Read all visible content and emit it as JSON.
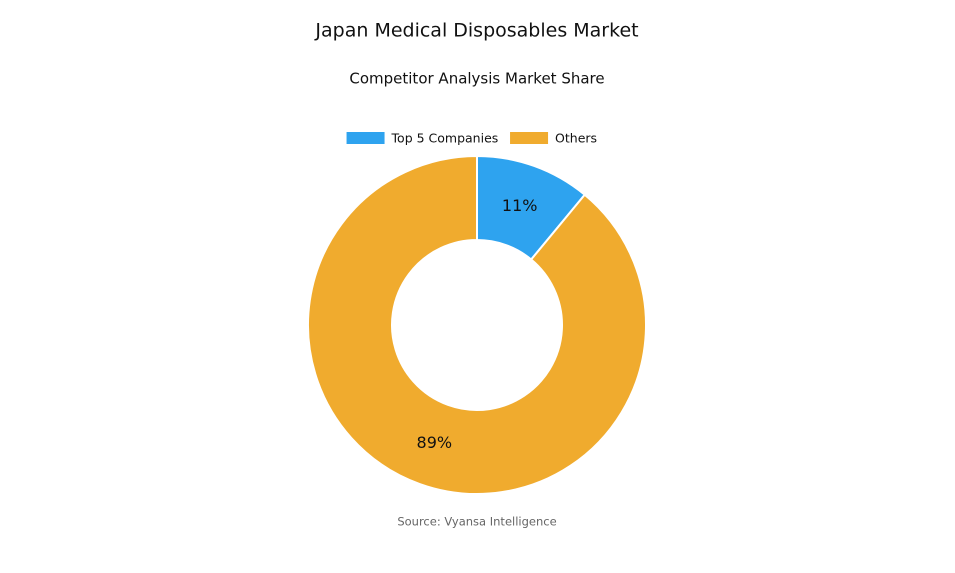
{
  "chart_data": {
    "type": "donut",
    "title": "Japan Medical Disposables Market",
    "subtitle": "Competitor Analysis Market Share",
    "categories": [
      "Top 5 Companies",
      "Others"
    ],
    "values": [
      11,
      89
    ],
    "value_labels": [
      "11%",
      "89%"
    ],
    "colors": [
      "#2ea3ef",
      "#f0ab2e"
    ],
    "legend": "top",
    "source": "Source: Vyansa Intelligence"
  }
}
